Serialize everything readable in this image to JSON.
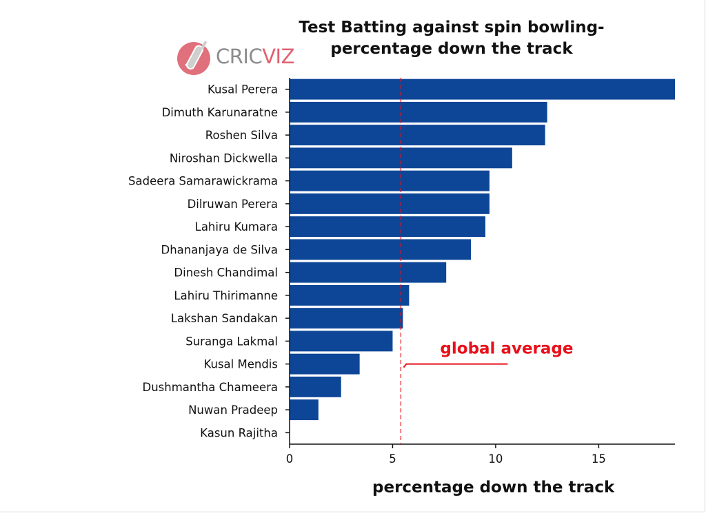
{
  "chart_data": {
    "type": "bar",
    "orientation": "horizontal",
    "title_line1": "Test Batting against spin bowling-",
    "title_line2": "percentage down the track",
    "xlabel": "percentage down the track",
    "ylabel": "",
    "categories": [
      "Kusal Perera",
      "Dimuth Karunaratne",
      "Roshen Silva",
      "Niroshan Dickwella",
      "Sadeera Samarawickrama",
      "Dilruwan Perera",
      "Lahiru Kumara",
      "Dhananjaya de Silva",
      "Dinesh Chandimal",
      "Lahiru Thirimanne",
      "Lakshan Sandakan",
      "Suranga Lakmal",
      "Kusal Mendis",
      "Dushmantha Chameera",
      "Nuwan Pradeep",
      "Kasun Rajitha"
    ],
    "values": [
      18.7,
      12.5,
      12.4,
      10.8,
      9.7,
      9.7,
      9.5,
      8.8,
      7.6,
      5.8,
      5.5,
      5.0,
      3.4,
      2.5,
      1.4,
      0
    ],
    "xlim": [
      0,
      18.7
    ],
    "xticks": [
      0,
      5,
      10,
      15
    ],
    "bar_color": "#0e4697",
    "reference_line": {
      "value": 5.4,
      "label": "global average",
      "color": "#e8101a"
    },
    "grid": false
  },
  "logo": {
    "text_a": "CRIC",
    "text_b": "VIZ"
  }
}
